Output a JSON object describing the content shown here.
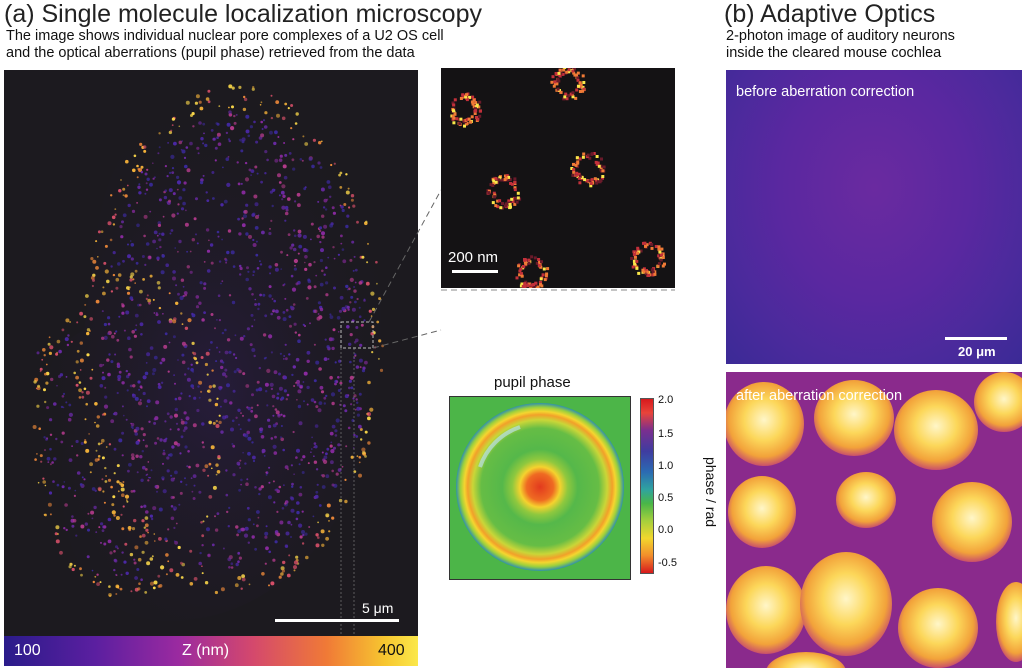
{
  "panel_a": {
    "title": "(a) Single molecule localization microscopy",
    "subtitle_line1": "The image shows individual nuclear pore complexes of a U2 OS cell",
    "subtitle_line2": "and the optical aberrations (pupil phase) retrieved from the data",
    "colorbar": {
      "min_label": "100",
      "axis_label": "Z (nm)",
      "max_label": "400"
    },
    "main_scale": "5 μm",
    "inset_scale": "200 nm",
    "pupil": {
      "title": "pupil phase",
      "colorbar_label": "phase / rad",
      "ticks": [
        "2.0",
        "1.5",
        "1.0",
        "0.5",
        "0.0",
        "-0.5"
      ]
    }
  },
  "panel_b": {
    "title": "(b) Adaptive Optics",
    "subtitle_line1": "2-photon image of auditory neurons",
    "subtitle_line2": "inside the cleared mouse cochlea",
    "before_label": "before aberration correction",
    "after_label": "after aberration correction",
    "scale": "20 μm"
  },
  "colors": {
    "dark_bg": "#1c1a1f",
    "magenta": "#8a2a8c",
    "yellow": "#fbe84a"
  }
}
